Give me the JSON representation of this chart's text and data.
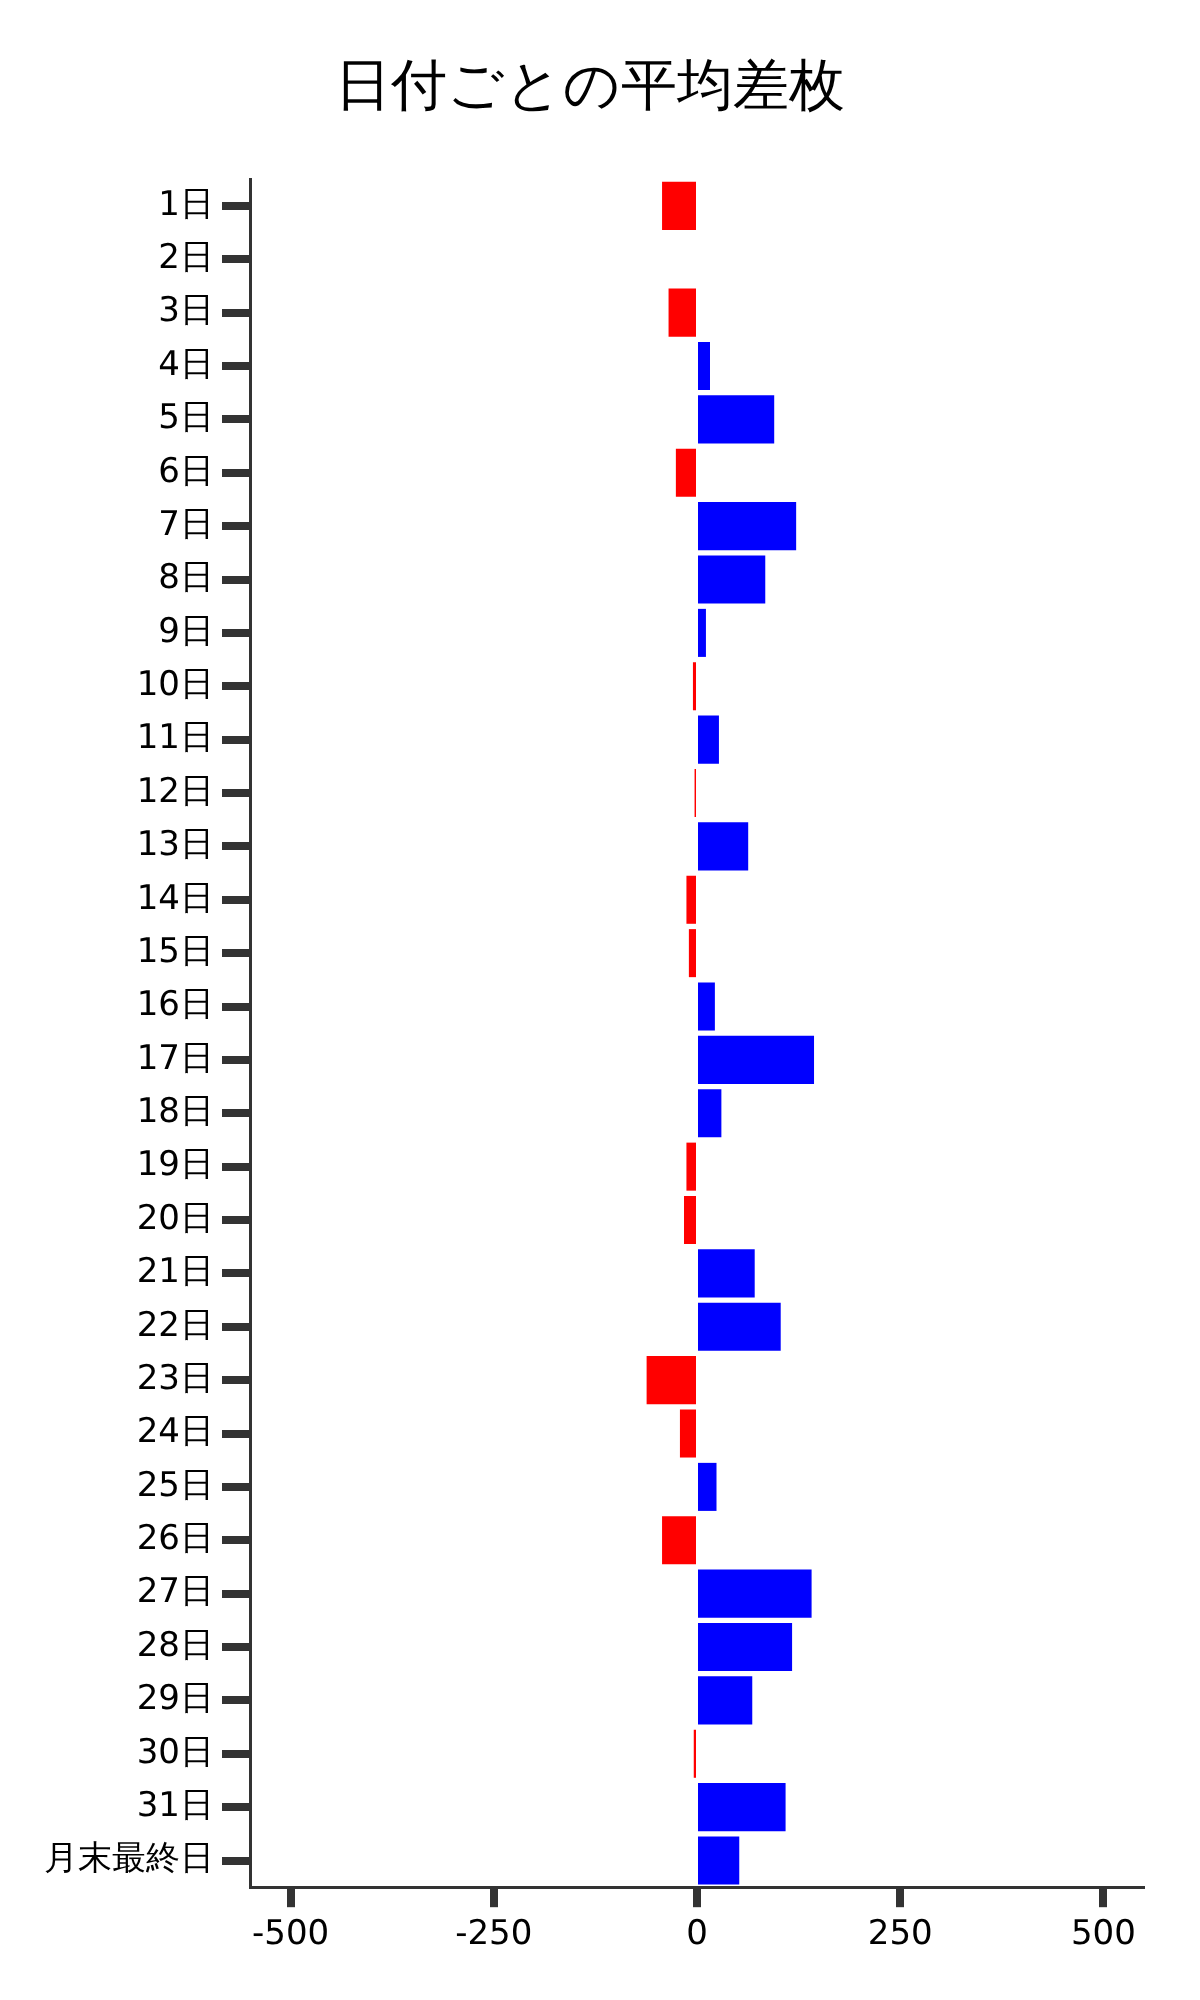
{
  "chart_data": {
    "type": "bar",
    "orientation": "horizontal",
    "title": "日付ごとの平均差枚",
    "categories": [
      "1日",
      "2日",
      "3日",
      "4日",
      "5日",
      "6日",
      "7日",
      "8日",
      "9日",
      "10日",
      "11日",
      "12日",
      "13日",
      "14日",
      "15日",
      "16日",
      "17日",
      "18日",
      "19日",
      "20日",
      "21日",
      "22日",
      "23日",
      "24日",
      "25日",
      "26日",
      "27日",
      "28日",
      "29日",
      "30日",
      "31日",
      "月末最終日"
    ],
    "values": [
      -43,
      0,
      -35,
      16,
      95,
      -26,
      122,
      84,
      11,
      -5,
      27,
      -3,
      63,
      -13,
      -10,
      22,
      144,
      30,
      -13,
      -16,
      71,
      103,
      -62,
      -21,
      24,
      -43,
      141,
      117,
      68,
      -4,
      109,
      52
    ],
    "colors": [
      "#ff0000",
      "#0000ff",
      "#ff0000",
      "#0000ff",
      "#0000ff",
      "#ff0000",
      "#0000ff",
      "#0000ff",
      "#0000ff",
      "#ff0000",
      "#0000ff",
      "#ff0000",
      "#0000ff",
      "#ff0000",
      "#ff0000",
      "#0000ff",
      "#0000ff",
      "#0000ff",
      "#ff0000",
      "#ff0000",
      "#0000ff",
      "#0000ff",
      "#ff0000",
      "#ff0000",
      "#0000ff",
      "#ff0000",
      "#0000ff",
      "#0000ff",
      "#0000ff",
      "#ff0000",
      "#0000ff",
      "#0000ff"
    ],
    "xlim": [
      -550,
      550
    ],
    "xticks": [
      -500,
      -250,
      0,
      250,
      500
    ]
  }
}
